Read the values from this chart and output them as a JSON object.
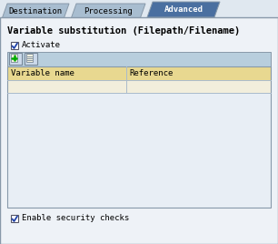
{
  "bg_color": "#e0e8f0",
  "panel_bg": "#eef2f7",
  "tab_colors": [
    "#a8bdd0",
    "#a8bdd0",
    "#4a6fa0"
  ],
  "tab_text_colors": [
    "#000000",
    "#000000",
    "#ffffff"
  ],
  "tab_labels": [
    "Destination",
    "Processing",
    "Advanced"
  ],
  "active_tab": 2,
  "title": "Variable substitution (Filepath/Filename)",
  "checkbox1_label": "Activate",
  "checkbox1_checked": true,
  "checkbox2_label": "Enable security checks",
  "checkbox2_checked": true,
  "table_header_bg": "#e8d890",
  "table_row1_bg": "#f2eedc",
  "table_body_bg": "#e8eef5",
  "table_cols": [
    "Variable name",
    "Reference"
  ],
  "toolbar_bg": "#b8cedd",
  "border_color": "#8899aa",
  "inner_border": "#aabbcc",
  "font_size": 6.5,
  "tab_font_size": 6.5,
  "title_font_size": 7.5
}
